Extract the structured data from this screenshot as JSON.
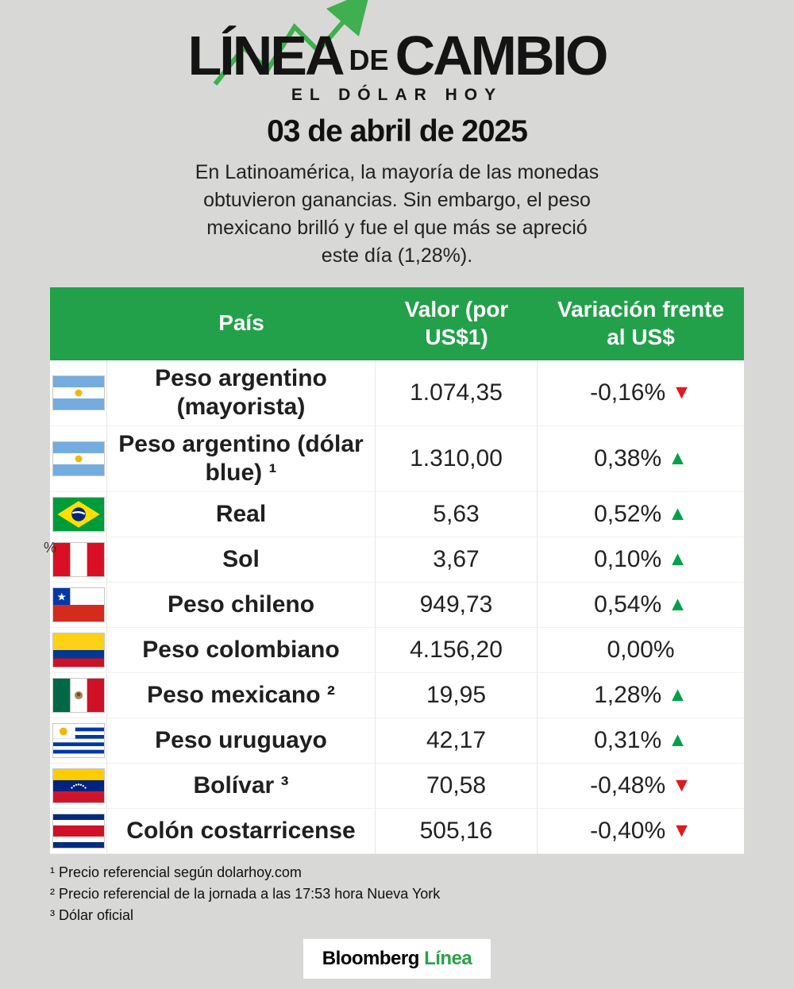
{
  "stray_text": "%",
  "header": {
    "title_part1": "LÍNEA",
    "title_de": "DE",
    "title_part2": "CAMBIO",
    "subtitle": "EL DÓLAR HOY",
    "date": "03 de abril de 2025",
    "description": "En Latinoamérica, la mayoría de las monedas obtuvieron ganancias. Sin embargo, el peso mexicano brilló y fue el que más se apreció este día (1,28%)."
  },
  "chart_data": {
    "type": "table",
    "title": "Línea de Cambio — El dólar hoy — 03 de abril de 2025",
    "columns": [
      "País",
      "Valor (por US$1)",
      "Variación frente al US$"
    ],
    "rows": [
      {
        "pais": "Peso argentino (mayorista)",
        "valor": 1074.35,
        "variacion_pct": -0.16
      },
      {
        "pais": "Peso argentino (dólar blue) ¹",
        "valor": 1310.0,
        "variacion_pct": 0.38
      },
      {
        "pais": "Real",
        "valor": 5.63,
        "variacion_pct": 0.52
      },
      {
        "pais": "Sol",
        "valor": 3.67,
        "variacion_pct": 0.1
      },
      {
        "pais": "Peso chileno",
        "valor": 949.73,
        "variacion_pct": 0.54
      },
      {
        "pais": "Peso colombiano",
        "valor": 4156.2,
        "variacion_pct": 0.0
      },
      {
        "pais": "Peso mexicano ²",
        "valor": 19.95,
        "variacion_pct": 1.28
      },
      {
        "pais": "Peso uruguayo",
        "valor": 42.17,
        "variacion_pct": 0.31
      },
      {
        "pais": "Bolívar ³",
        "valor": 70.58,
        "variacion_pct": -0.48
      },
      {
        "pais": "Colón costarricense",
        "valor": 505.16,
        "variacion_pct": -0.4
      }
    ]
  },
  "table": {
    "columns": {
      "country": "País",
      "value": "Valor (por US$1)",
      "variation": "Variación frente al US$"
    },
    "rows": [
      {
        "flag": "argentina",
        "currency": "Peso argentino (mayorista)",
        "value": "1.074,35",
        "variation": "-0,16%",
        "direction": "down"
      },
      {
        "flag": "argentina",
        "currency": "Peso argentino (dólar blue) ¹",
        "value": "1.310,00",
        "variation": "0,38%",
        "direction": "up"
      },
      {
        "flag": "brazil",
        "currency": "Real",
        "value": "5,63",
        "variation": "0,52%",
        "direction": "up"
      },
      {
        "flag": "peru",
        "currency": "Sol",
        "value": "3,67",
        "variation": "0,10%",
        "direction": "up"
      },
      {
        "flag": "chile",
        "currency": "Peso chileno",
        "value": "949,73",
        "variation": "0,54%",
        "direction": "up"
      },
      {
        "flag": "colombia",
        "currency": "Peso colombiano",
        "value": "4.156,20",
        "variation": "0,00%",
        "direction": "flat"
      },
      {
        "flag": "mexico",
        "currency": "Peso mexicano ²",
        "value": "19,95",
        "variation": "1,28%",
        "direction": "up"
      },
      {
        "flag": "uruguay",
        "currency": "Peso uruguayo",
        "value": "42,17",
        "variation": "0,31%",
        "direction": "up"
      },
      {
        "flag": "venezuela",
        "currency": "Bolívar ³",
        "value": "70,58",
        "variation": "-0,48%",
        "direction": "down"
      },
      {
        "flag": "costa-rica",
        "currency": "Colón costarricense",
        "value": "505,16",
        "variation": "-0,40%",
        "direction": "down"
      }
    ]
  },
  "footnotes": [
    "¹ Precio referencial según dolarhoy.com",
    "² Precio referencial de la jornada a las 17:53 hora Nueva York",
    "³ Dólar oficial"
  ],
  "footer": {
    "brand_black": "Bloomberg",
    "brand_green": "Línea"
  },
  "colors": {
    "background": "#D8D8D6",
    "header_green": "#23A04A",
    "arrow_up_green": "#00A14B",
    "arrow_down_red": "#E3171E",
    "brand_green": "#2AA148",
    "title_chart_green": "#3FAF4F"
  }
}
